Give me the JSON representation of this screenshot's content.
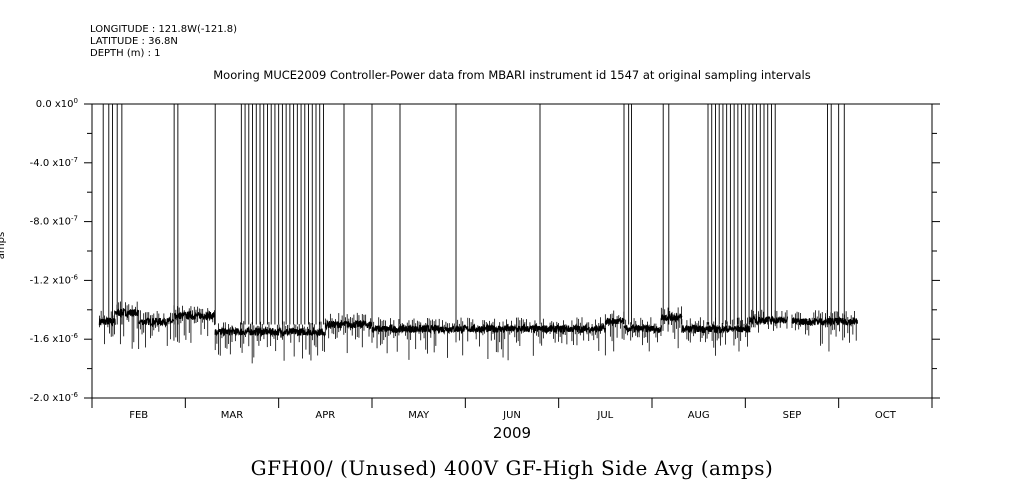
{
  "header": {
    "longitude": "LONGITUDE : 121.8W(-121.8)",
    "latitude": "LATITUDE : 36.8N",
    "depth": "DEPTH (m) : 1"
  },
  "chart_data": {
    "type": "line",
    "title": "Mooring MUCE2009 Controller-Power data from MBARI instrument id 1547 at original sampling intervals",
    "ylabel": "amps",
    "xlabel": "2009",
    "bottom_title": "GFH00/ (Unused) 400V GF-High Side Avg (amps)",
    "x_unit": "month index (FEB=1 ... OCT=9, value at month start)",
    "xlim": [
      0.5,
      9.5
    ],
    "ylim": [
      -2e-06,
      0.0
    ],
    "y_ticks": [
      {
        "value": 0.0,
        "label": "0.0 x10",
        "exp": "0"
      },
      {
        "value": -4e-07,
        "label": "-4.0 x10",
        "exp": "-7"
      },
      {
        "value": -8e-07,
        "label": "-8.0 x10",
        "exp": "-7"
      },
      {
        "value": -1.2e-06,
        "label": "-1.2 x10",
        "exp": "-6"
      },
      {
        "value": -1.6e-06,
        "label": "-1.6 x10",
        "exp": "-6"
      },
      {
        "value": -2e-06,
        "label": "-2.0 x10",
        "exp": "-6"
      }
    ],
    "months": [
      "FEB",
      "MAR",
      "APR",
      "MAY",
      "JUN",
      "JUL",
      "AUG",
      "SEP",
      "OCT"
    ],
    "baseline_segments": [
      {
        "x0": 0.58,
        "x1": 0.75,
        "y": -1.48e-06
      },
      {
        "x0": 0.75,
        "x1": 1.0,
        "y": -1.42e-06
      },
      {
        "x0": 1.0,
        "x1": 1.38,
        "y": -1.48e-06
      },
      {
        "x0": 1.38,
        "x1": 1.82,
        "y": -1.44e-06
      },
      {
        "x0": 1.82,
        "x1": 3.0,
        "y": -1.55e-06
      },
      {
        "x0": 3.0,
        "x1": 3.5,
        "y": -1.5e-06
      },
      {
        "x0": 3.5,
        "x1": 6.0,
        "y": -1.53e-06
      },
      {
        "x0": 6.0,
        "x1": 6.2,
        "y": -1.48e-06
      },
      {
        "x0": 6.2,
        "x1": 6.6,
        "y": -1.53e-06
      },
      {
        "x0": 6.6,
        "x1": 6.82,
        "y": -1.45e-06
      },
      {
        "x0": 6.82,
        "x1": 7.55,
        "y": -1.53e-06
      },
      {
        "x0": 7.55,
        "x1": 7.95,
        "y": -1.47e-06
      },
      {
        "x0": 8.0,
        "x1": 8.4,
        "y": -1.48e-06
      },
      {
        "x0": 8.4,
        "x1": 8.7,
        "y": -1.48e-06
      }
    ],
    "spike_times": [
      0.62,
      0.68,
      0.72,
      0.77,
      0.82,
      1.38,
      1.42,
      1.82,
      2.1,
      2.14,
      2.18,
      2.22,
      2.26,
      2.3,
      2.34,
      2.38,
      2.42,
      2.46,
      2.5,
      2.54,
      2.58,
      2.62,
      2.66,
      2.7,
      2.74,
      2.78,
      2.82,
      2.86,
      2.9,
      2.94,
      2.98,
      3.2,
      3.5,
      3.8,
      4.4,
      5.3,
      6.2,
      6.25,
      6.28,
      6.62,
      6.68,
      7.1,
      7.14,
      7.18,
      7.22,
      7.26,
      7.3,
      7.34,
      7.38,
      7.42,
      7.46,
      7.5,
      7.54,
      7.58,
      7.62,
      7.66,
      7.7,
      7.74,
      7.78,
      7.82,
      8.38,
      8.42,
      8.5,
      8.56
    ]
  }
}
